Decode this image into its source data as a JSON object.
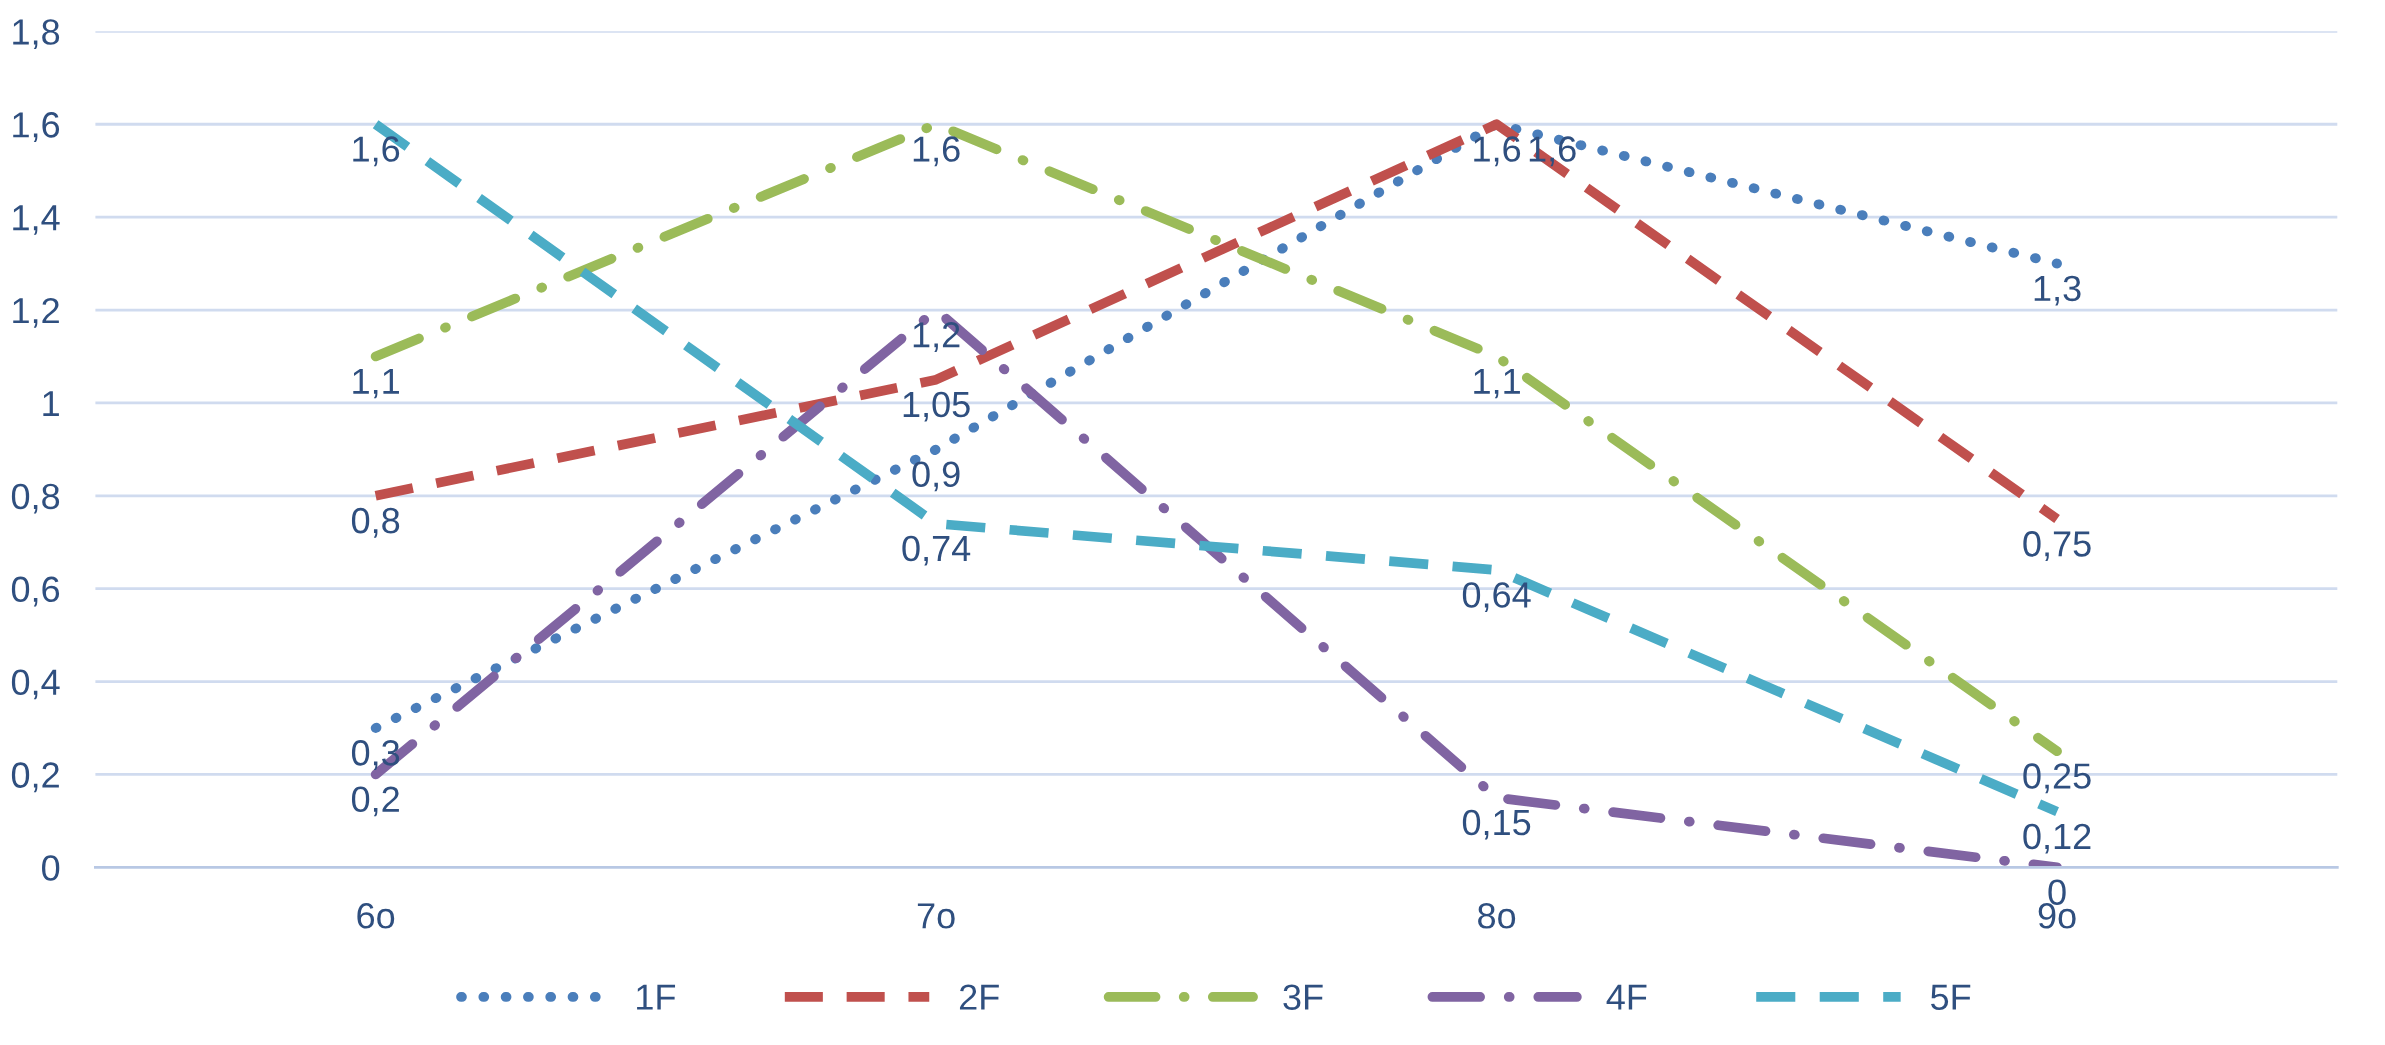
{
  "chart_data": {
    "type": "line",
    "categories": [
      "6o",
      "7o",
      "8o",
      "9o"
    ],
    "series": [
      {
        "name": "1F",
        "color": "#4a7ebb",
        "line_style": "dotted",
        "values": [
          0.3,
          0.9,
          1.6,
          1.3
        ],
        "value_labels": [
          "0,3",
          "0,9",
          "1,6",
          "1,3"
        ]
      },
      {
        "name": "2F",
        "color": "#c0504d",
        "line_style": "dashed",
        "values": [
          0.8,
          1.05,
          1.6,
          0.75
        ],
        "value_labels": [
          "0,8",
          "1,05",
          "1,6",
          "0,75"
        ]
      },
      {
        "name": "3F",
        "color": "#9bbb59",
        "line_style": "dashdot",
        "values": [
          1.1,
          1.6,
          1.1,
          0.25
        ],
        "value_labels": [
          "1,1",
          "1,6",
          "1,1",
          "0,25"
        ]
      },
      {
        "name": "4F",
        "color": "#8064a2",
        "line_style": "dashdot",
        "values": [
          0.2,
          1.2,
          0.15,
          0
        ],
        "value_labels": [
          "0,2",
          "1,2",
          "0,15",
          "0"
        ]
      },
      {
        "name": "5F",
        "color": "#4bacc6",
        "line_style": "dashed",
        "values": [
          1.6,
          0.74,
          0.64,
          0.12
        ],
        "value_labels": [
          "1,6",
          "0,74",
          "0,64",
          "0,12"
        ]
      }
    ],
    "ylim": [
      0,
      1.8
    ],
    "yticks": [
      {
        "value": 0,
        "label": "0"
      },
      {
        "value": 0.2,
        "label": "0,2"
      },
      {
        "value": 0.4,
        "label": "0,4"
      },
      {
        "value": 0.6,
        "label": "0,6"
      },
      {
        "value": 0.8,
        "label": "0,8"
      },
      {
        "value": 1,
        "label": "1"
      },
      {
        "value": 1.2,
        "label": "1,2"
      },
      {
        "value": 1.4,
        "label": "1,4"
      },
      {
        "value": 1.6,
        "label": "1,6"
      },
      {
        "value": 1.8,
        "label": "1,8"
      }
    ],
    "grid": "y",
    "legend": "bottom",
    "marker": "none"
  }
}
